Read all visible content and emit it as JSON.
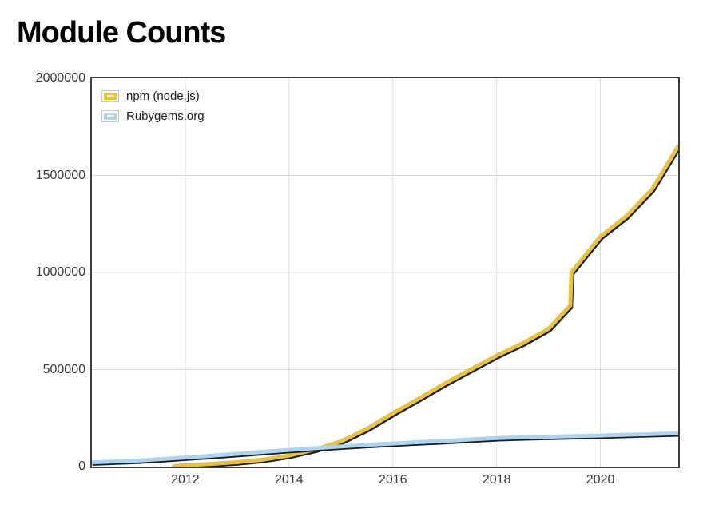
{
  "page": {
    "background_color": "#FFFFFF"
  },
  "colors": {
    "npm_line": "#E8C23E",
    "rubygems_line": "#AED3F2",
    "line_shadow": "#1C1C1C",
    "gridline": "#DCDCDC",
    "plot_border": "#3C3C3C",
    "tick_text": "#3A3A3A",
    "title_text": "#000000"
  },
  "chart_data": {
    "type": "line",
    "title": "Module Counts",
    "xlabel": "",
    "ylabel": "",
    "xlim": [
      2010.2,
      2021.5
    ],
    "ylim": [
      0,
      2000000
    ],
    "x_ticks": [
      2012,
      2014,
      2016,
      2018,
      2020
    ],
    "x_tick_labels": [
      "2012",
      "2014",
      "2016",
      "2018",
      "2020"
    ],
    "y_ticks": [
      0,
      500000,
      1000000,
      1500000,
      2000000
    ],
    "y_tick_labels": [
      "0",
      "500000",
      "1000000",
      "1500000",
      "2000000"
    ],
    "grid": true,
    "legend_position": "top-left",
    "line_width": 5,
    "shadow_width": 2.8,
    "shadow_offset": [
      2,
      2.8
    ],
    "series": [
      {
        "name": "npm (node.js)",
        "color": "#E8C23E",
        "x": [
          2011.78,
          2012,
          2012.5,
          2013,
          2013.5,
          2014,
          2014.5,
          2015,
          2015.5,
          2016,
          2016.5,
          2017,
          2017.5,
          2018,
          2018.5,
          2019,
          2019.42,
          2019.44,
          2020,
          2020.5,
          2021,
          2021.5
        ],
        "values": [
          3000,
          7000,
          14000,
          23000,
          36000,
          57000,
          88000,
          130000,
          195000,
          275000,
          350000,
          428000,
          500000,
          572000,
          635000,
          710000,
          830000,
          1000000,
          1185000,
          1290000,
          1430000,
          1650000
        ]
      },
      {
        "name": "Rubygems.org",
        "color": "#AED3F2",
        "x": [
          2010.2,
          2010.5,
          2011,
          2011.5,
          2012,
          2012.5,
          2013,
          2013.5,
          2014,
          2014.5,
          2015,
          2015.5,
          2016,
          2016.5,
          2017,
          2017.5,
          2018,
          2018.5,
          2019,
          2019.5,
          2020,
          2020.5,
          2021,
          2021.5
        ],
        "values": [
          22000,
          25000,
          30000,
          38000,
          47000,
          56000,
          66000,
          76000,
          86000,
          95000,
          104000,
          112000,
          119000,
          126000,
          132000,
          140000,
          147000,
          151000,
          154000,
          157000,
          160000,
          164000,
          168000,
          172000
        ]
      }
    ]
  }
}
